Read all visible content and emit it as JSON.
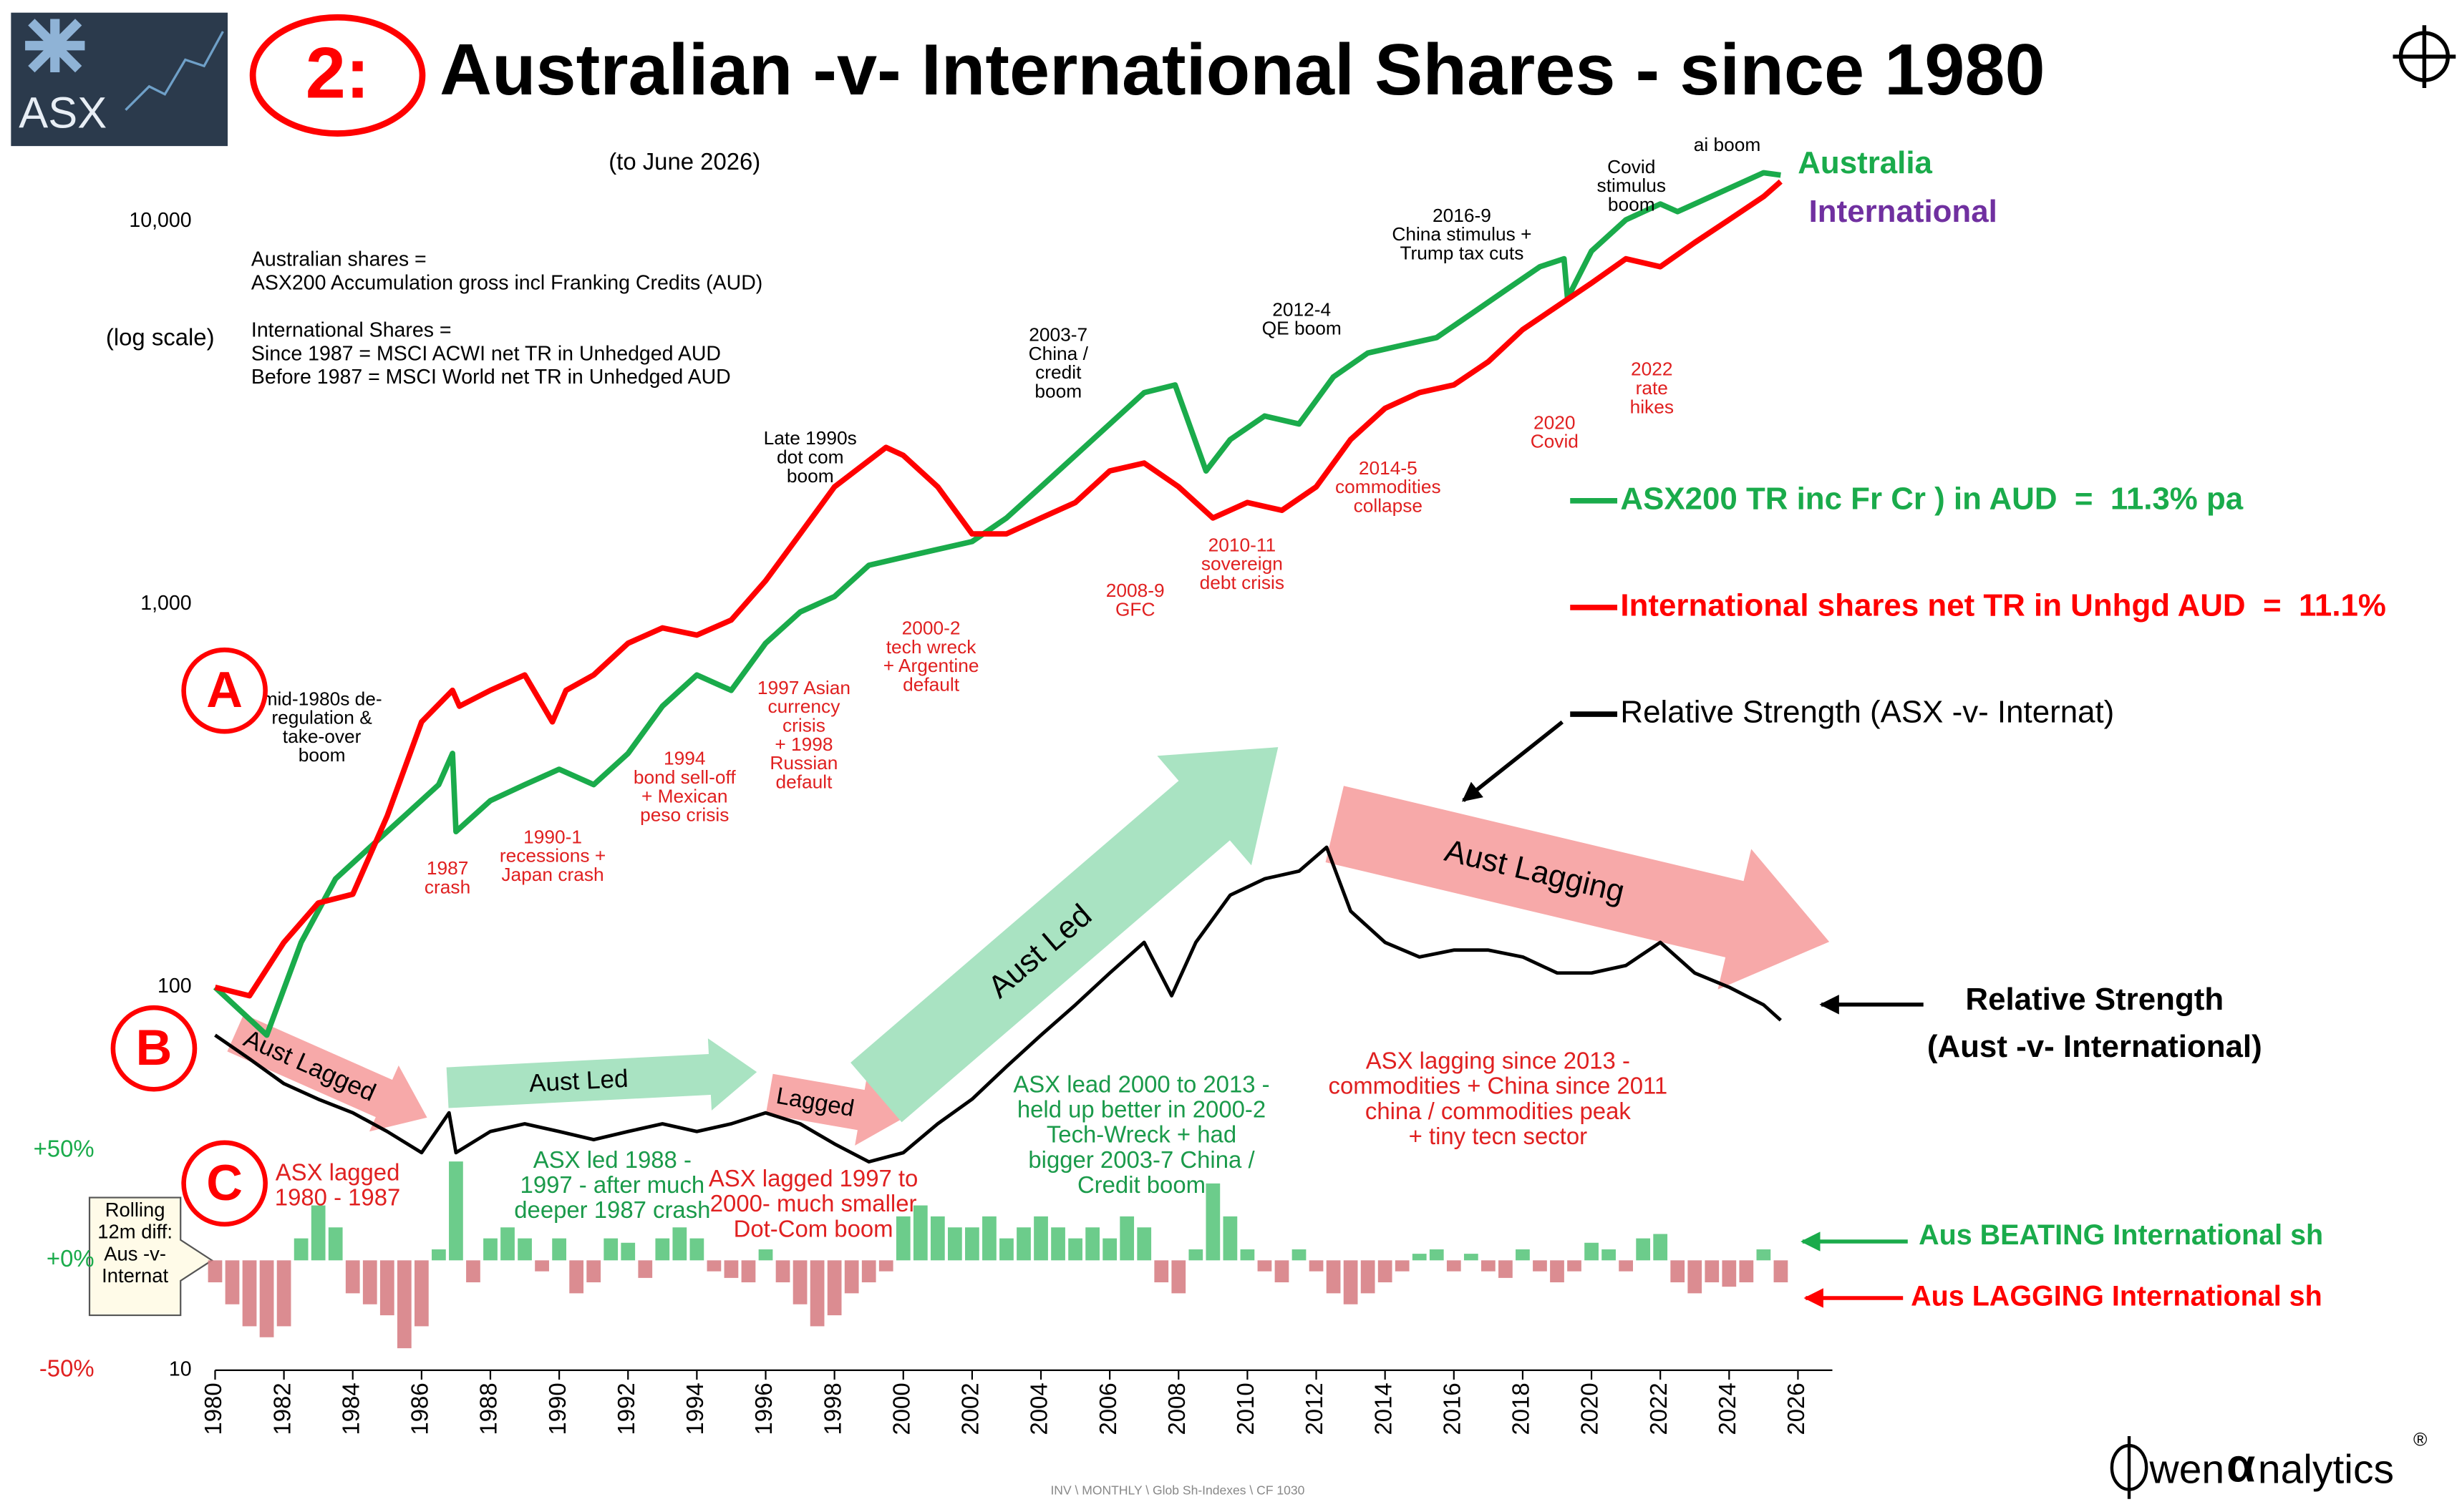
{
  "logo": {
    "text": "ASX"
  },
  "badge": "2:",
  "chart_data": {
    "type": "line",
    "title": "Australian -v- International Shares - since 1980",
    "subtitle": "(to June 2026)",
    "y_scale_note": "(log scale)",
    "log_y": true,
    "grid": false,
    "legend": "right",
    "xlim": [
      1980,
      2027
    ],
    "xticks": [
      1980,
      1982,
      1984,
      1986,
      1988,
      1990,
      1992,
      1994,
      1996,
      1998,
      2000,
      2002,
      2004,
      2006,
      2008,
      2010,
      2012,
      2014,
      2016,
      2018,
      2020,
      2022,
      2024,
      2026
    ],
    "ylim": [
      10,
      15000
    ],
    "yticks": [
      10,
      100,
      {
        "value": 1000,
        "label": "1,000"
      },
      {
        "value": 10000,
        "label": "10,000"
      }
    ],
    "y2lim": [
      -50,
      50
    ],
    "y2ticks": [
      {
        "value": 50,
        "label": "+50%"
      },
      {
        "value": 0,
        "label": "+0%"
      },
      {
        "value": -50,
        "label": "-50%"
      }
    ],
    "series": [
      {
        "name": "ASX200 TR inc Fr Cr ) in AUD  =  11.3% pa",
        "end_label": "Australia",
        "color": "#1aab4b",
        "label_color": "#1aab4b",
        "x": [
          1980,
          1981.5,
          1982.5,
          1983.5,
          1984.5,
          1985.5,
          1986.5,
          1986.9,
          1987,
          1988,
          1989,
          1990,
          1991,
          1992,
          1993,
          1994,
          1995,
          1996,
          1997,
          1998,
          1999,
          2000,
          2001,
          2002,
          2003,
          2004,
          2005,
          2006,
          2007,
          2007.9,
          2008.8,
          2009.5,
          2010.5,
          2011.5,
          2012.5,
          2013.5,
          2014.5,
          2015.5,
          2016.5,
          2017.5,
          2018.5,
          2019.2,
          2019.3,
          2020,
          2021,
          2022,
          2022.5,
          2023,
          2024,
          2025,
          2025.5
        ],
        "values": [
          100,
          75,
          131,
          192,
          232,
          280,
          338,
          408,
          255,
          307,
          338,
          371,
          338,
          408,
          542,
          654,
          596,
          791,
          955,
          1048,
          1265,
          1327,
          1391,
          1458,
          1680,
          2028,
          2448,
          2958,
          3572,
          3740,
          2229,
          2692,
          3103,
          2958,
          3925,
          4529,
          4746,
          4974,
          5728,
          6607,
          7609,
          7983,
          6297,
          8366,
          10094,
          11100,
          10600,
          11100,
          12200,
          13400,
          13200
        ]
      },
      {
        "name": "International shares net TR in Unhgd AUD  =  11.1%",
        "end_label": "International",
        "color": "#ff0000",
        "label_color": "#7030a0",
        "x": [
          1980,
          1981,
          1982,
          1983,
          1984,
          1985,
          1986,
          1986.9,
          1987.1,
          1988,
          1989,
          1989.8,
          1990.2,
          1991,
          1992,
          1993,
          1994,
          1995,
          1996,
          1997,
          1998,
          1999.5,
          2000,
          2001,
          2002,
          2003,
          2004,
          2005,
          2006,
          2007,
          2008,
          2009,
          2010,
          2011,
          2012,
          2013,
          2014,
          2015,
          2016,
          2017,
          2018,
          2019,
          2020,
          2021,
          2022,
          2023,
          2024,
          2025,
          2025.5
        ],
        "values": [
          100,
          95,
          131,
          166,
          175,
          280,
          493,
          596,
          542,
          596,
          654,
          493,
          596,
          654,
          791,
          868,
          831,
          910,
          1152,
          1528,
          2028,
          2570,
          2448,
          2028,
          1528,
          1528,
          1680,
          1845,
          2229,
          2337,
          2028,
          1680,
          1845,
          1760,
          2028,
          2692,
          3250,
          3572,
          3740,
          4300,
          5220,
          6000,
          6900,
          7983,
          7609,
          8800,
          10100,
          11600,
          12700
        ]
      },
      {
        "name": "Relative Strength (ASX -v- Internat)",
        "color": "#000000",
        "x": [
          1980,
          1981,
          1982,
          1983,
          1984,
          1985,
          1986,
          1986.8,
          1987,
          1988,
          1989,
          1990,
          1991,
          1992,
          1993,
          1994,
          1995,
          1996,
          1997,
          1998,
          1999,
          2000,
          2001,
          2002,
          2003,
          2004,
          2005,
          2006,
          2007,
          2007.8,
          2008.5,
          2009.5,
          2010.5,
          2011.5,
          2012.3,
          2013,
          2014,
          2015,
          2016,
          2017,
          2018,
          2019,
          2020,
          2021,
          2022,
          2023,
          2024,
          2025,
          2025.5
        ],
        "values": [
          75,
          65,
          56,
          51,
          47,
          42,
          37,
          47,
          37,
          42,
          44,
          42,
          40,
          42,
          44,
          42,
          44,
          47,
          44,
          39,
          35,
          37,
          44,
          51,
          62,
          75,
          90,
          109,
          131,
          95,
          131,
          174,
          192,
          201,
          232,
          158,
          131,
          120,
          125,
          125,
          120,
          109,
          109,
          114,
          131,
          109,
          100,
          90,
          82
        ]
      },
      {
        "name": "Rolling 12m diff: Aus -v- Internat",
        "type": "bar",
        "axis": "y2",
        "positive_color": "#5cc77e",
        "negative_color": "#d77f85",
        "x": [
          1980,
          1980.5,
          1981,
          1981.5,
          1982,
          1982.5,
          1983,
          1983.5,
          1984,
          1984.5,
          1985,
          1985.5,
          1986,
          1986.5,
          1987,
          1987.5,
          1988,
          1988.5,
          1989,
          1989.5,
          1990,
          1990.5,
          1991,
          1991.5,
          1992,
          1992.5,
          1993,
          1993.5,
          1994,
          1994.5,
          1995,
          1995.5,
          1996,
          1996.5,
          1997,
          1997.5,
          1998,
          1998.5,
          1999,
          1999.5,
          2000,
          2000.5,
          2001,
          2001.5,
          2002,
          2002.5,
          2003,
          2003.5,
          2004,
          2004.5,
          2005,
          2005.5,
          2006,
          2006.5,
          2007,
          2007.5,
          2008,
          2008.5,
          2009,
          2009.5,
          2010,
          2010.5,
          2011,
          2011.5,
          2012,
          2012.5,
          2013,
          2013.5,
          2014,
          2014.5,
          2015,
          2015.5,
          2016,
          2016.5,
          2017,
          2017.5,
          2018,
          2018.5,
          2019,
          2019.5,
          2020,
          2020.5,
          2021,
          2021.5,
          2022,
          2022.5,
          2023,
          2023.5,
          2024,
          2024.5,
          2025,
          2025.5
        ],
        "values": [
          -10,
          -20,
          -30,
          -35,
          -30,
          10,
          25,
          15,
          -15,
          -20,
          -25,
          -40,
          -30,
          5,
          45,
          -10,
          10,
          15,
          10,
          -5,
          10,
          -15,
          -10,
          10,
          8,
          -8,
          10,
          15,
          10,
          -5,
          -8,
          -10,
          5,
          -10,
          -20,
          -30,
          -25,
          -15,
          -10,
          -5,
          20,
          25,
          20,
          15,
          15,
          20,
          10,
          15,
          20,
          15,
          10,
          15,
          10,
          20,
          15,
          -10,
          -15,
          5,
          35,
          20,
          5,
          -5,
          -10,
          5,
          -5,
          -15,
          -20,
          -15,
          -10,
          -5,
          3,
          5,
          -5,
          3,
          -5,
          -8,
          5,
          -5,
          -10,
          -5,
          8,
          5,
          -5,
          10,
          12,
          -10,
          -15,
          -10,
          -12,
          -10,
          5,
          -10
        ]
      }
    ],
    "notes": [
      [
        "Australian shares =",
        "ASX200 Accumulation gross incl Franking Credits (AUD)"
      ],
      [
        "International Shares =",
        "Since 1987 = MSCI ACWI net TR in Unhedged AUD",
        "Before 1987 = MSCI World net TR in Unhedged AUD"
      ]
    ],
    "annotations": [
      [
        "mid-1980s de-",
        "regulation &",
        "take-over",
        "boom"
      ],
      [
        "1987",
        "crash"
      ],
      [
        "1990-1",
        "recessions +",
        "Japan crash"
      ],
      [
        "1994",
        "bond sell-off",
        "+ Mexican",
        "peso crisis"
      ],
      [
        "1997 Asian",
        "currency",
        "crisis",
        "+ 1998",
        "Russian",
        "default"
      ],
      [
        "Late 1990s",
        "dot com",
        "boom"
      ],
      [
        "2000-2",
        "tech wreck",
        "+ Argentine",
        "default"
      ],
      [
        "2003-7",
        "China /",
        "credit",
        "boom"
      ],
      [
        "2008-9",
        "GFC"
      ],
      [
        "2012-4",
        "QE boom"
      ],
      [
        "2010-11",
        "sovereign",
        "debt crisis"
      ],
      [
        "2014-5",
        "commodities",
        "collapse"
      ],
      [
        "2016-9",
        "China stimulus +",
        "Trump tax cuts"
      ],
      [
        "2020",
        "Covid"
      ],
      [
        "Covid",
        "stimulus",
        "boom"
      ],
      [
        "2022",
        "rate",
        "hikes"
      ],
      [
        "ai boom"
      ],
      [
        "ASX lagged",
        "1980 - 1987"
      ],
      [
        "ASX led 1988 -",
        "1997 - after much",
        "deeper 1987 crash"
      ],
      [
        "ASX lagged 1997 to",
        "2000- much smaller",
        "Dot-Com boom"
      ],
      [
        "ASX lead 2000 to 2013 -",
        "held up better in 2000-2",
        "Tech-Wreck + had",
        "bigger 2003-7 China /",
        "Credit boom"
      ],
      [
        "ASX lagging since 2013 -",
        "commodities + China since 2011",
        "china / commodities peak",
        "+ tiny tecn sector"
      ]
    ],
    "arrow_labels": [
      "Aust Lagged",
      "Aust Led",
      "Lagged",
      "Aust Led",
      "Aust Lagging"
    ],
    "section_labels": [
      "A",
      "B",
      "C"
    ],
    "relative_strength_label": [
      "Relative Strength",
      "(Aust -v- International)"
    ],
    "beating_label": "Aus BEATING International sh",
    "lagging_label": "Aus LAGGING International sh"
  },
  "footer": "INV \\ MONTHLY \\  Glob Sh-Indexes \\  CF 1030",
  "brand": {
    "name": "wen",
    "alpha": "α",
    "rest": "nalytics",
    "mark": "®"
  }
}
